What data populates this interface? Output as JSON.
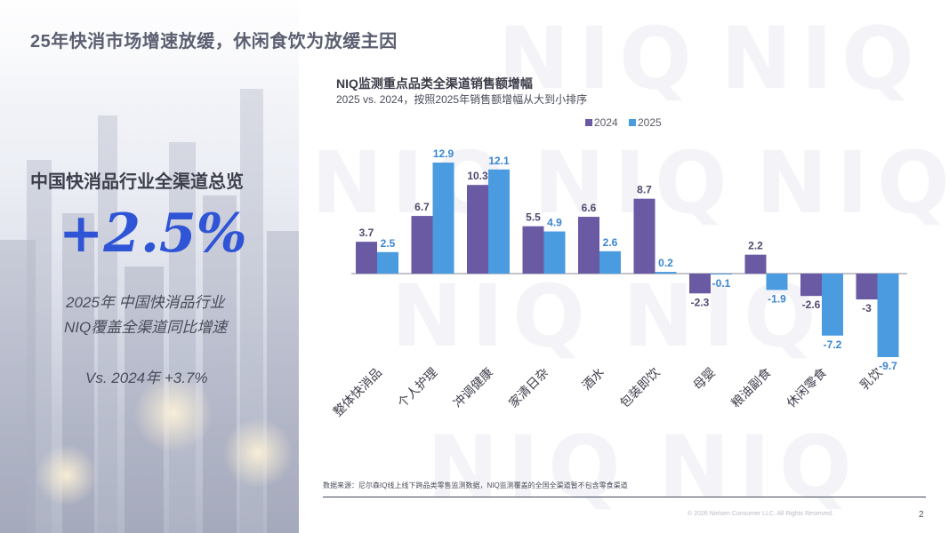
{
  "header": {
    "title": "25年快消市场增速放缓，休闲食饮为放缓主因"
  },
  "watermark": {
    "text": "NIQ"
  },
  "overview": {
    "title": "中国快消品行业全渠道总览",
    "growth": "+2.5%",
    "desc_line1": "2025年 中国快消品行业",
    "desc_line2": "NIQ覆盖全渠道同比增速",
    "comparison": "Vs. 2024年 +3.7%"
  },
  "chart_data": {
    "type": "bar",
    "title": "NIQ监测重点品类全渠道销售额增幅",
    "subtitle": "2025 vs. 2024，按照2025年销售额增幅从大到小排序",
    "categories": [
      "整体快消品",
      "个人护理",
      "冲调健康",
      "家清日杂",
      "酒水",
      "包装即饮",
      "母婴",
      "粮油副食",
      "休闲零食",
      "乳饮"
    ],
    "series": [
      {
        "name": "2024",
        "color": "#6a5aa3",
        "values": [
          3.7,
          6.7,
          10.3,
          5.5,
          6.6,
          8.7,
          -2.3,
          2.2,
          -2.6,
          -3.0
        ]
      },
      {
        "name": "2025",
        "color": "#4a9be0",
        "values": [
          2.5,
          12.9,
          12.1,
          4.9,
          2.6,
          0.2,
          -0.1,
          -1.9,
          -7.2,
          -9.7
        ]
      }
    ],
    "legend_position": "top-center",
    "xlabel": "",
    "ylabel": "",
    "ylim": [
      -10,
      13
    ],
    "grid": false
  },
  "footer": {
    "source": "数据来源：尼尔森IQ线上线下跨品类零售监测数据，NIQ监测覆盖的全国全渠道暂不包含零食渠道",
    "copyright": "© 2026 Nielsen Consumer LLC. All Rights Reserved.",
    "page_number": "2"
  }
}
